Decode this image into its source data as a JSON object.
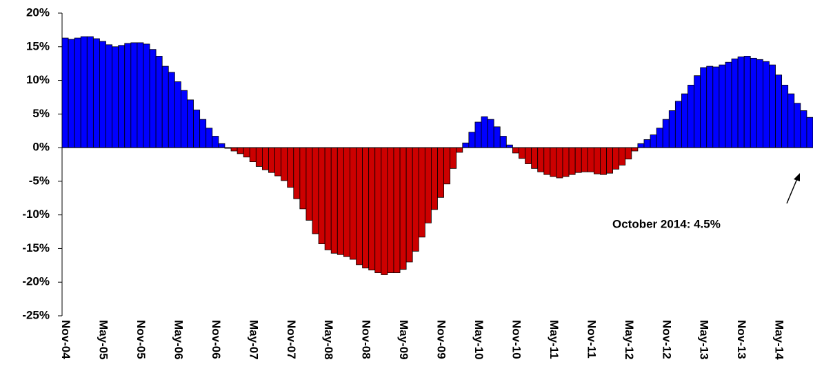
{
  "chart_data": {
    "type": "bar",
    "annotation": "October 2014: 4.5%",
    "categories": [
      "Nov-04",
      null,
      null,
      null,
      null,
      null,
      "May-05",
      null,
      null,
      null,
      null,
      null,
      "Nov-05",
      null,
      null,
      null,
      null,
      null,
      "May-06",
      null,
      null,
      null,
      null,
      null,
      "Nov-06",
      null,
      null,
      null,
      null,
      null,
      "May-07",
      null,
      null,
      null,
      null,
      null,
      "Nov-07",
      null,
      null,
      null,
      null,
      null,
      "May-08",
      null,
      null,
      null,
      null,
      null,
      "Nov-08",
      null,
      null,
      null,
      null,
      null,
      "May-09",
      null,
      null,
      null,
      null,
      null,
      "Nov-09",
      null,
      null,
      null,
      null,
      null,
      "May-10",
      null,
      null,
      null,
      null,
      null,
      "Nov-10",
      null,
      null,
      null,
      null,
      null,
      "May-11",
      null,
      null,
      null,
      null,
      null,
      "Nov-11",
      null,
      null,
      null,
      null,
      null,
      "May-12",
      null,
      null,
      null,
      null,
      null,
      "Nov-12",
      null,
      null,
      null,
      null,
      null,
      "May-13",
      null,
      null,
      null,
      null,
      null,
      "Nov-13",
      null,
      null,
      null,
      null,
      null,
      "May-14",
      null,
      null,
      null,
      null,
      null
    ],
    "values": [
      16.3,
      16.1,
      16.3,
      16.5,
      16.5,
      16.2,
      15.8,
      15.3,
      15.0,
      15.2,
      15.5,
      15.6,
      15.6,
      15.4,
      14.6,
      13.6,
      12.1,
      11.2,
      9.8,
      8.5,
      7.1,
      5.6,
      4.2,
      2.9,
      1.7,
      0.6,
      -0.1,
      -0.5,
      -0.9,
      -1.4,
      -2.1,
      -2.8,
      -3.3,
      -3.7,
      -4.2,
      -4.9,
      -5.9,
      -7.6,
      -9.1,
      -10.8,
      -12.8,
      -14.3,
      -15.2,
      -15.7,
      -15.9,
      -16.2,
      -16.6,
      -17.4,
      -17.9,
      -18.2,
      -18.6,
      -18.9,
      -18.6,
      -18.6,
      -18.1,
      -17.0,
      -15.4,
      -13.3,
      -11.2,
      -9.2,
      -7.4,
      -5.4,
      -3.1,
      -0.7,
      0.7,
      2.3,
      3.8,
      4.6,
      4.2,
      3.1,
      1.7,
      0.4,
      -0.8,
      -1.6,
      -2.4,
      -3.1,
      -3.6,
      -4.0,
      -4.3,
      -4.5,
      -4.3,
      -4.0,
      -3.7,
      -3.6,
      -3.6,
      -3.9,
      -4.0,
      -3.8,
      -3.2,
      -2.6,
      -1.7,
      -0.5,
      0.6,
      1.2,
      1.9,
      2.9,
      4.2,
      5.5,
      6.9,
      8.0,
      9.3,
      10.7,
      11.9,
      12.1,
      12.0,
      12.3,
      12.7,
      13.2,
      13.5,
      13.6,
      13.3,
      13.1,
      12.8,
      12.3,
      10.8,
      9.3,
      8.0,
      6.6,
      5.5,
      4.5
    ],
    "color": "#0000ff",
    "negative_color": "#cc0000",
    "ylim": [
      -25,
      20
    ],
    "yticks": [
      {
        "value": -25,
        "label": "-25%"
      },
      {
        "value": -20,
        "label": "-20%"
      },
      {
        "value": -15,
        "label": "-15%"
      },
      {
        "value": -10,
        "label": "-10%"
      },
      {
        "value": -5,
        "label": "-5%"
      },
      {
        "value": 0,
        "label": "0%"
      },
      {
        "value": 5,
        "label": "5%"
      },
      {
        "value": 10,
        "label": "10%"
      },
      {
        "value": 15,
        "label": "15%"
      },
      {
        "value": 20,
        "label": "20%"
      }
    ]
  }
}
